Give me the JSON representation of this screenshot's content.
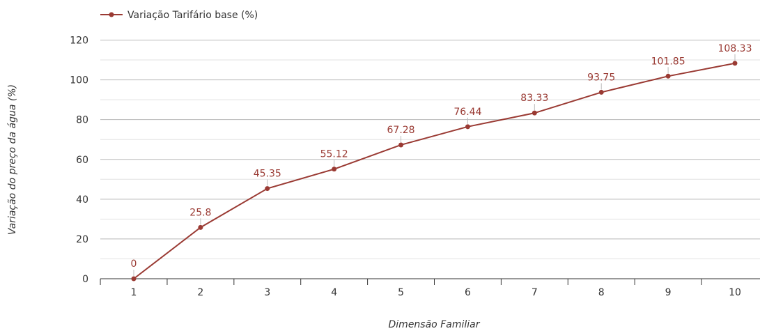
{
  "colors": {
    "series": "#9a3a33",
    "grid_major": "#b8b8b8",
    "grid_minor": "#e2e2e2",
    "axis": "#333333",
    "leader": "#bbbbbb"
  },
  "chart_data": {
    "type": "line",
    "title": "",
    "xlabel": "Dimensão Familiar",
    "ylabel": "Variação do preço da água (%)",
    "x": [
      1,
      2,
      3,
      4,
      5,
      6,
      7,
      8,
      9,
      10
    ],
    "ylim": [
      0,
      120
    ],
    "yticks": [
      0,
      20,
      40,
      60,
      80,
      100,
      120
    ],
    "grid": true,
    "legend": "top-left",
    "series": [
      {
        "name": "Variação Tarifário base (%)",
        "values": [
          0,
          25.8,
          45.35,
          55.12,
          67.28,
          76.44,
          83.33,
          93.75,
          101.85,
          108.33
        ]
      }
    ]
  }
}
